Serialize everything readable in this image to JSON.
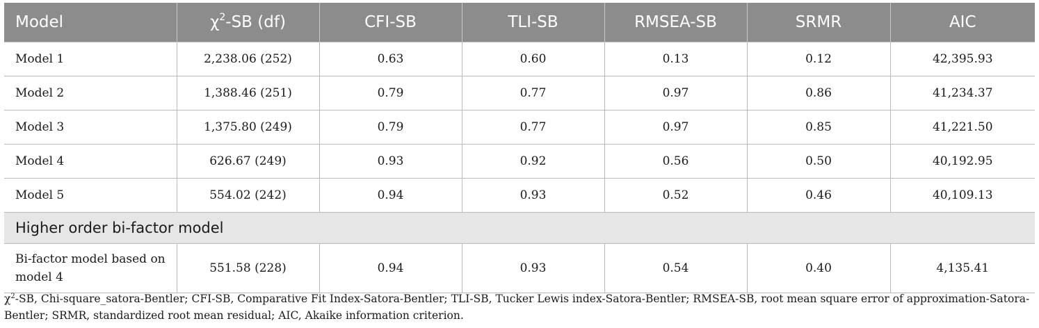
{
  "table": {
    "headers": {
      "model": "Model",
      "chi_symbol": "χ",
      "chi_sup": "2",
      "chi_rest": "-SB (df)",
      "cfi": "CFI-SB",
      "tli": "TLI-SB",
      "rmsea": "RMSEA-SB",
      "srmr": "SRMR",
      "aic": "AIC"
    },
    "rows": [
      {
        "model": "Model 1",
        "chi": "2,238.06 (252)",
        "cfi": "0.63",
        "tli": "0.60",
        "rmsea": "0.13",
        "srmr": "0.12",
        "aic": "42,395.93"
      },
      {
        "model": "Model 2",
        "chi": "1,388.46 (251)",
        "cfi": "0.79",
        "tli": "0.77",
        "rmsea": "0.97",
        "srmr": "0.86",
        "aic": "41,234.37"
      },
      {
        "model": "Model 3",
        "chi": "1,375.80 (249)",
        "cfi": "0.79",
        "tli": "0.77",
        "rmsea": "0.97",
        "srmr": "0.85",
        "aic": "41,221.50"
      },
      {
        "model": "Model 4",
        "chi": "626.67 (249)",
        "cfi": "0.93",
        "tli": "0.92",
        "rmsea": "0.56",
        "srmr": "0.50",
        "aic": "40,192.95"
      },
      {
        "model": "Model 5",
        "chi": "554.02 (242)",
        "cfi": "0.94",
        "tli": "0.93",
        "rmsea": "0.52",
        "srmr": "0.46",
        "aic": "40,109.13"
      }
    ],
    "section_label": "Higher order bi-factor model",
    "bifactor_row": {
      "model_line1": "Bi-factor model based on",
      "model_line2": "model 4",
      "chi": "551.58 (228)",
      "cfi": "0.94",
      "tli": "0.93",
      "rmsea": "0.54",
      "srmr": "0.40",
      "aic": "4,135.41"
    }
  },
  "footnote": {
    "chi_symbol": "χ",
    "chi_sup": "2",
    "text_line1": "-SB, Chi-square_satora-Bentler; CFI-SB, Comparative Fit Index-Satora-Bentler; TLI-SB, Tucker Lewis index-Satora-Bentler; RMSEA-SB, root mean square error of approximation-Satora-",
    "text_line2": "Bentler; SRMR, standardized root mean residual; AIC, Akaike information criterion."
  }
}
